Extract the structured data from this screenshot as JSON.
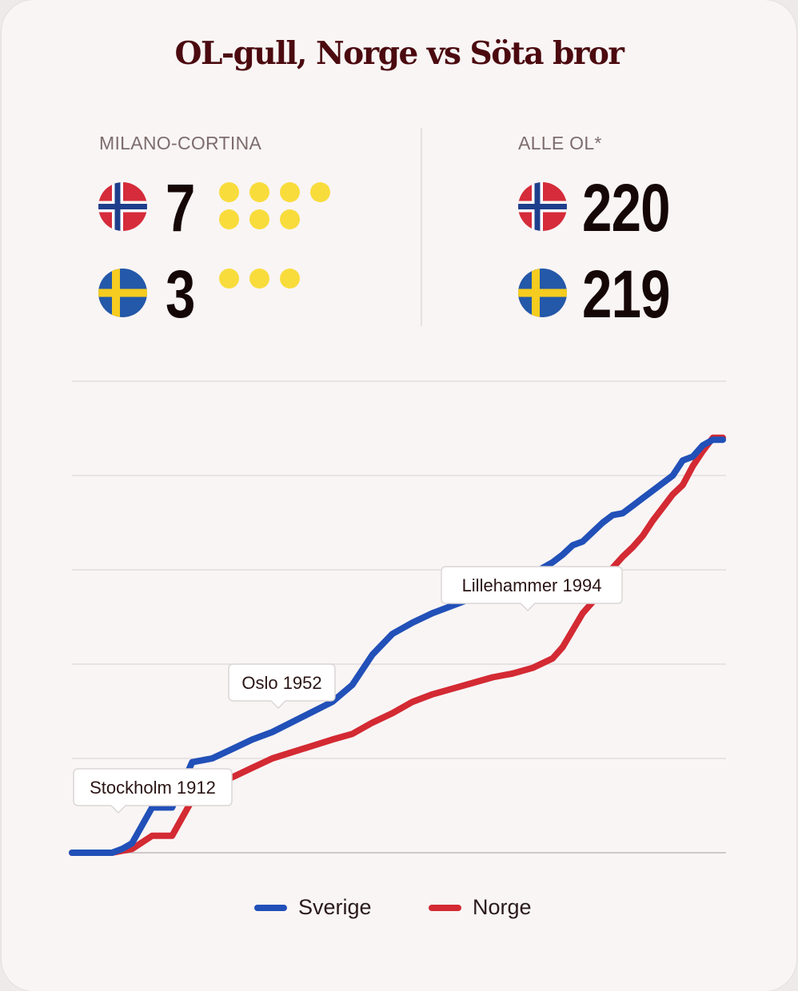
{
  "title": "OL-gull, Norge vs Söta bror",
  "left_panel": {
    "label": "MILANO-CORTINA",
    "norway_count": "7",
    "sweden_count": "3",
    "norway_dots": 7,
    "sweden_dots": 3
  },
  "right_panel": {
    "label": "ALLE OL*",
    "norway_count": "220",
    "sweden_count": "219"
  },
  "colors": {
    "sverige": "#2150b8",
    "norge": "#d32a33",
    "gold_dot": "#f8dc3c",
    "title": "#4b0a0f"
  },
  "legend": {
    "sverige": "Sverige",
    "norge": "Norge"
  },
  "annotations": [
    {
      "label": "Stockholm 1912",
      "x": 1912
    },
    {
      "label": "Oslo 1952",
      "x": 1952
    },
    {
      "label": "Lillehammer 1994",
      "x": 1994
    }
  ],
  "chart_data": {
    "type": "line",
    "xlim": [
      1896,
      2026
    ],
    "ylim": [
      0,
      250
    ],
    "grid": true,
    "legend_position": "bottom",
    "series": [
      {
        "name": "Sverige",
        "color": "#2150b8",
        "points": [
          [
            1896,
            0
          ],
          [
            1900,
            0
          ],
          [
            1904,
            0
          ],
          [
            1906,
            2
          ],
          [
            1908,
            5
          ],
          [
            1912,
            24
          ],
          [
            1916,
            24
          ],
          [
            1920,
            48
          ],
          [
            1924,
            50
          ],
          [
            1928,
            55
          ],
          [
            1932,
            60
          ],
          [
            1936,
            64
          ],
          [
            1948,
            80
          ],
          [
            1952,
            89
          ],
          [
            1956,
            105
          ],
          [
            1960,
            116
          ],
          [
            1964,
            122
          ],
          [
            1968,
            127
          ],
          [
            1972,
            131
          ],
          [
            1976,
            135
          ],
          [
            1980,
            138
          ],
          [
            1984,
            144
          ],
          [
            1988,
            148
          ],
          [
            1992,
            154
          ],
          [
            1994,
            158
          ],
          [
            1996,
            163
          ],
          [
            1998,
            165
          ],
          [
            2000,
            170
          ],
          [
            2002,
            175
          ],
          [
            2004,
            179
          ],
          [
            2006,
            180
          ],
          [
            2008,
            184
          ],
          [
            2010,
            188
          ],
          [
            2012,
            192
          ],
          [
            2014,
            196
          ],
          [
            2016,
            200
          ],
          [
            2018,
            208
          ],
          [
            2020,
            210
          ],
          [
            2022,
            216
          ],
          [
            2024,
            219
          ],
          [
            2026,
            219
          ]
        ]
      },
      {
        "name": "Norge",
        "color": "#d32a33",
        "points": [
          [
            1896,
            0
          ],
          [
            1900,
            0
          ],
          [
            1904,
            0
          ],
          [
            1906,
            1
          ],
          [
            1908,
            2
          ],
          [
            1912,
            9
          ],
          [
            1916,
            9
          ],
          [
            1920,
            28
          ],
          [
            1924,
            36
          ],
          [
            1928,
            40
          ],
          [
            1932,
            45
          ],
          [
            1936,
            50
          ],
          [
            1948,
            60
          ],
          [
            1952,
            63
          ],
          [
            1956,
            69
          ],
          [
            1960,
            74
          ],
          [
            1964,
            80
          ],
          [
            1968,
            84
          ],
          [
            1972,
            87
          ],
          [
            1976,
            90
          ],
          [
            1980,
            93
          ],
          [
            1984,
            95
          ],
          [
            1988,
            98
          ],
          [
            1992,
            103
          ],
          [
            1994,
            109
          ],
          [
            1996,
            118
          ],
          [
            1998,
            127
          ],
          [
            2000,
            133
          ],
          [
            2002,
            142
          ],
          [
            2004,
            151
          ],
          [
            2006,
            157
          ],
          [
            2008,
            162
          ],
          [
            2010,
            168
          ],
          [
            2012,
            176
          ],
          [
            2014,
            183
          ],
          [
            2016,
            190
          ],
          [
            2018,
            195
          ],
          [
            2020,
            205
          ],
          [
            2022,
            213
          ],
          [
            2024,
            220
          ],
          [
            2026,
            220
          ]
        ]
      }
    ]
  }
}
